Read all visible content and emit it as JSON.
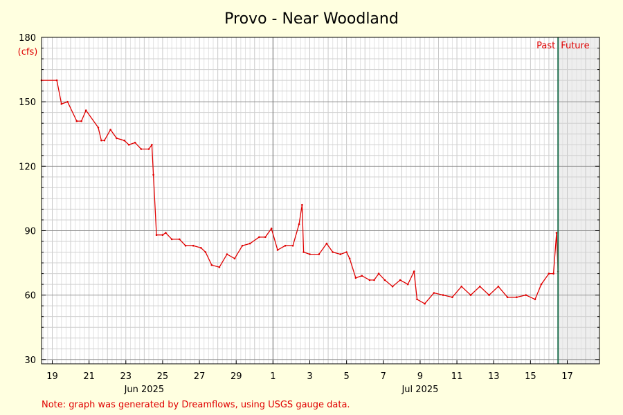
{
  "chart_data": {
    "type": "line",
    "title": "Provo - Near Woodland",
    "ylabel": "(cfs)",
    "ylim": [
      28,
      180
    ],
    "y_ticks": [
      30,
      60,
      90,
      120,
      150,
      180
    ],
    "xlim": [
      "2025-06-18T10:00",
      "2025-07-18T18:00"
    ],
    "x_tick_labels": [
      {
        "date": "2025-06-19",
        "label": "19"
      },
      {
        "date": "2025-06-21",
        "label": "21"
      },
      {
        "date": "2025-06-23",
        "label": "23"
      },
      {
        "date": "2025-06-25",
        "label": "25"
      },
      {
        "date": "2025-06-27",
        "label": "27"
      },
      {
        "date": "2025-06-29",
        "label": "29"
      },
      {
        "date": "2025-07-01",
        "label": "1"
      },
      {
        "date": "2025-07-03",
        "label": "3"
      },
      {
        "date": "2025-07-05",
        "label": "5"
      },
      {
        "date": "2025-07-07",
        "label": "7"
      },
      {
        "date": "2025-07-09",
        "label": "9"
      },
      {
        "date": "2025-07-11",
        "label": "11"
      },
      {
        "date": "2025-07-13",
        "label": "13"
      },
      {
        "date": "2025-07-15",
        "label": "15"
      },
      {
        "date": "2025-07-17",
        "label": "17"
      }
    ],
    "month_labels": [
      {
        "date": "2025-06-24",
        "label": "Jun 2025"
      },
      {
        "date": "2025-07-09",
        "label": "Jul 2025"
      }
    ],
    "month_boundary": "2025-07-01",
    "now_marker": {
      "date": "2025-07-16T12:00",
      "past_label": "Past",
      "future_label": "Future"
    },
    "grid": true,
    "line_color": "#e00000",
    "now_color": "#207050",
    "note": "Note: graph was generated by Dreamflows, using USGS gauge data.",
    "series": [
      {
        "x": [
          "2025-06-18T10:00",
          "2025-06-19T06:00",
          "2025-06-19T12:00",
          "2025-06-19T20:00",
          "2025-06-20T08:00",
          "2025-06-20T14:00",
          "2025-06-20T20:00",
          "2025-06-21T12:00",
          "2025-06-21T16:00",
          "2025-06-21T20:00",
          "2025-06-22T04:00",
          "2025-06-22T12:00",
          "2025-06-22T22:00",
          "2025-06-23T04:00",
          "2025-06-23T12:00",
          "2025-06-23T20:00",
          "2025-06-24T06:00",
          "2025-06-24T10:00",
          "2025-06-24T12:00",
          "2025-06-24T16:00",
          "2025-06-25T00:00",
          "2025-06-25T04:00",
          "2025-06-25T12:00",
          "2025-06-25T22:00",
          "2025-06-26T06:00",
          "2025-06-26T16:00",
          "2025-06-27T02:00",
          "2025-06-27T08:00",
          "2025-06-27T16:00",
          "2025-06-28T02:00",
          "2025-06-28T12:00",
          "2025-06-28T22:00",
          "2025-06-29T08:00",
          "2025-06-29T18:00",
          "2025-06-30T06:00",
          "2025-06-30T14:00",
          "2025-06-30T22:00",
          "2025-07-01T06:00",
          "2025-07-01T16:00",
          "2025-07-02T02:00",
          "2025-07-02T10:00",
          "2025-07-02T14:00",
          "2025-07-02T16:00",
          "2025-07-03T00:00",
          "2025-07-03T12:00",
          "2025-07-03T22:00",
          "2025-07-04T06:00",
          "2025-07-04T16:00",
          "2025-07-05T00:00",
          "2025-07-05T04:00",
          "2025-07-05T12:00",
          "2025-07-05T20:00",
          "2025-07-06T06:00",
          "2025-07-06T12:00",
          "2025-07-06T18:00",
          "2025-07-07T02:00",
          "2025-07-07T12:00",
          "2025-07-07T22:00",
          "2025-07-08T08:00",
          "2025-07-08T16:00",
          "2025-07-08T20:00",
          "2025-07-09T06:00",
          "2025-07-09T18:00",
          "2025-07-10T06:00",
          "2025-07-10T18:00",
          "2025-07-11T06:00",
          "2025-07-11T18:00",
          "2025-07-12T06:00",
          "2025-07-12T18:00",
          "2025-07-13T06:00",
          "2025-07-13T18:00",
          "2025-07-14T06:00",
          "2025-07-14T18:00",
          "2025-07-15T06:00",
          "2025-07-15T14:00",
          "2025-07-16T00:00",
          "2025-07-16T06:00",
          "2025-07-16T10:00",
          "2025-07-16T12:00"
        ],
        "values": [
          160,
          160,
          149,
          150,
          141,
          141,
          146,
          138,
          132,
          132,
          137,
          133,
          132,
          130,
          131,
          128,
          128,
          130,
          116,
          88,
          88,
          89,
          86,
          86,
          83,
          83,
          82,
          80,
          74,
          73,
          79,
          77,
          83,
          84,
          87,
          87,
          91,
          81,
          83,
          83,
          93,
          102,
          80,
          79,
          79,
          84,
          80,
          79,
          80,
          77,
          68,
          69,
          67,
          67,
          70,
          67,
          64,
          67,
          65,
          71,
          58,
          56,
          61,
          60,
          59,
          64,
          60,
          64,
          60,
          64,
          59,
          59,
          60,
          58,
          65,
          70,
          70,
          89,
          71
        ]
      }
    ]
  }
}
